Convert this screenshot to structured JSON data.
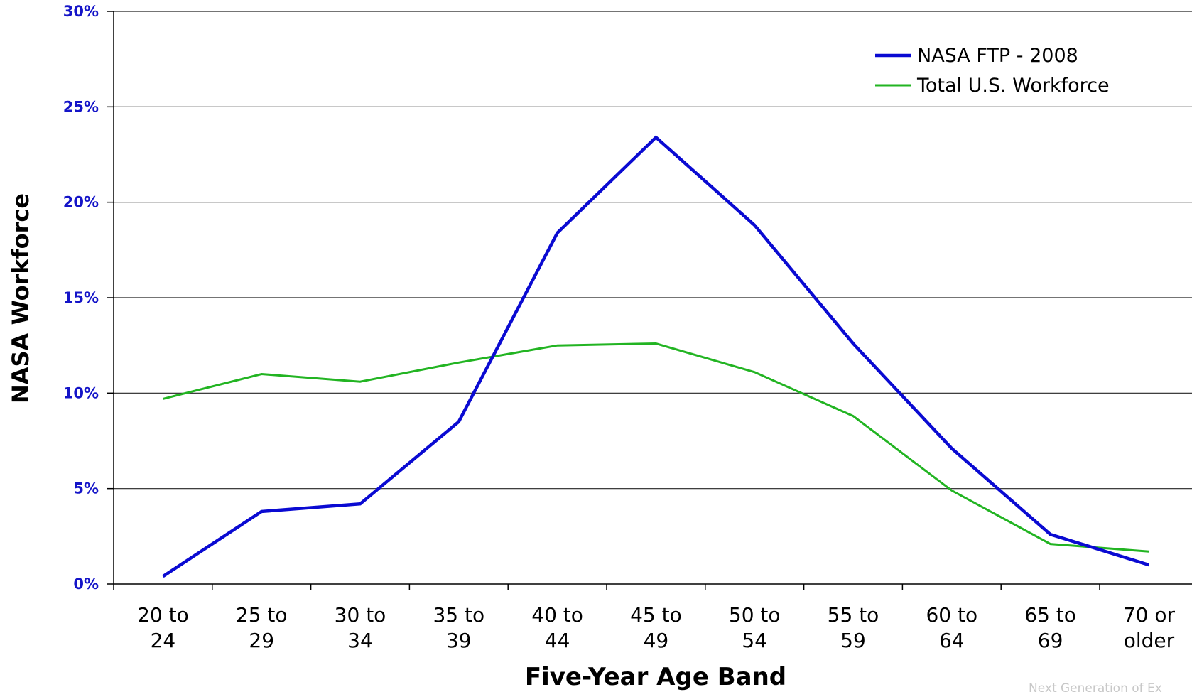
{
  "chart_data": {
    "type": "line",
    "title": "",
    "xlabel": "Five-Year Age Band",
    "ylabel": "NASA Workforce",
    "categories": [
      [
        "20 to",
        "24"
      ],
      [
        "25 to",
        "29"
      ],
      [
        "30 to",
        "34"
      ],
      [
        "35 to",
        "39"
      ],
      [
        "40 to",
        "44"
      ],
      [
        "45 to",
        "49"
      ],
      [
        "50 to",
        "54"
      ],
      [
        "55 to",
        "59"
      ],
      [
        "60 to",
        "64"
      ],
      [
        "65 to",
        "69"
      ],
      [
        "70 or",
        "older"
      ]
    ],
    "ylim": [
      0,
      30
    ],
    "yticks": [
      0,
      5,
      10,
      15,
      20,
      25,
      30
    ],
    "ytick_labels": [
      "0%",
      "5%",
      "10%",
      "15%",
      "20%",
      "25%",
      "30%"
    ],
    "grid": true,
    "legend_position": "top-right",
    "series": [
      {
        "name": "NASA FTP - 2008",
        "color": "#0a0ad2",
        "values": [
          0.4,
          3.8,
          4.2,
          8.5,
          18.4,
          23.4,
          18.8,
          12.6,
          7.1,
          2.6,
          1.0
        ]
      },
      {
        "name": "Total U.S. Workforce",
        "color": "#22b422",
        "values": [
          9.7,
          11.0,
          10.6,
          11.6,
          12.5,
          12.6,
          11.1,
          8.8,
          4.9,
          2.1,
          1.7
        ]
      }
    ]
  },
  "footer_text": "Next Generation of Ex"
}
